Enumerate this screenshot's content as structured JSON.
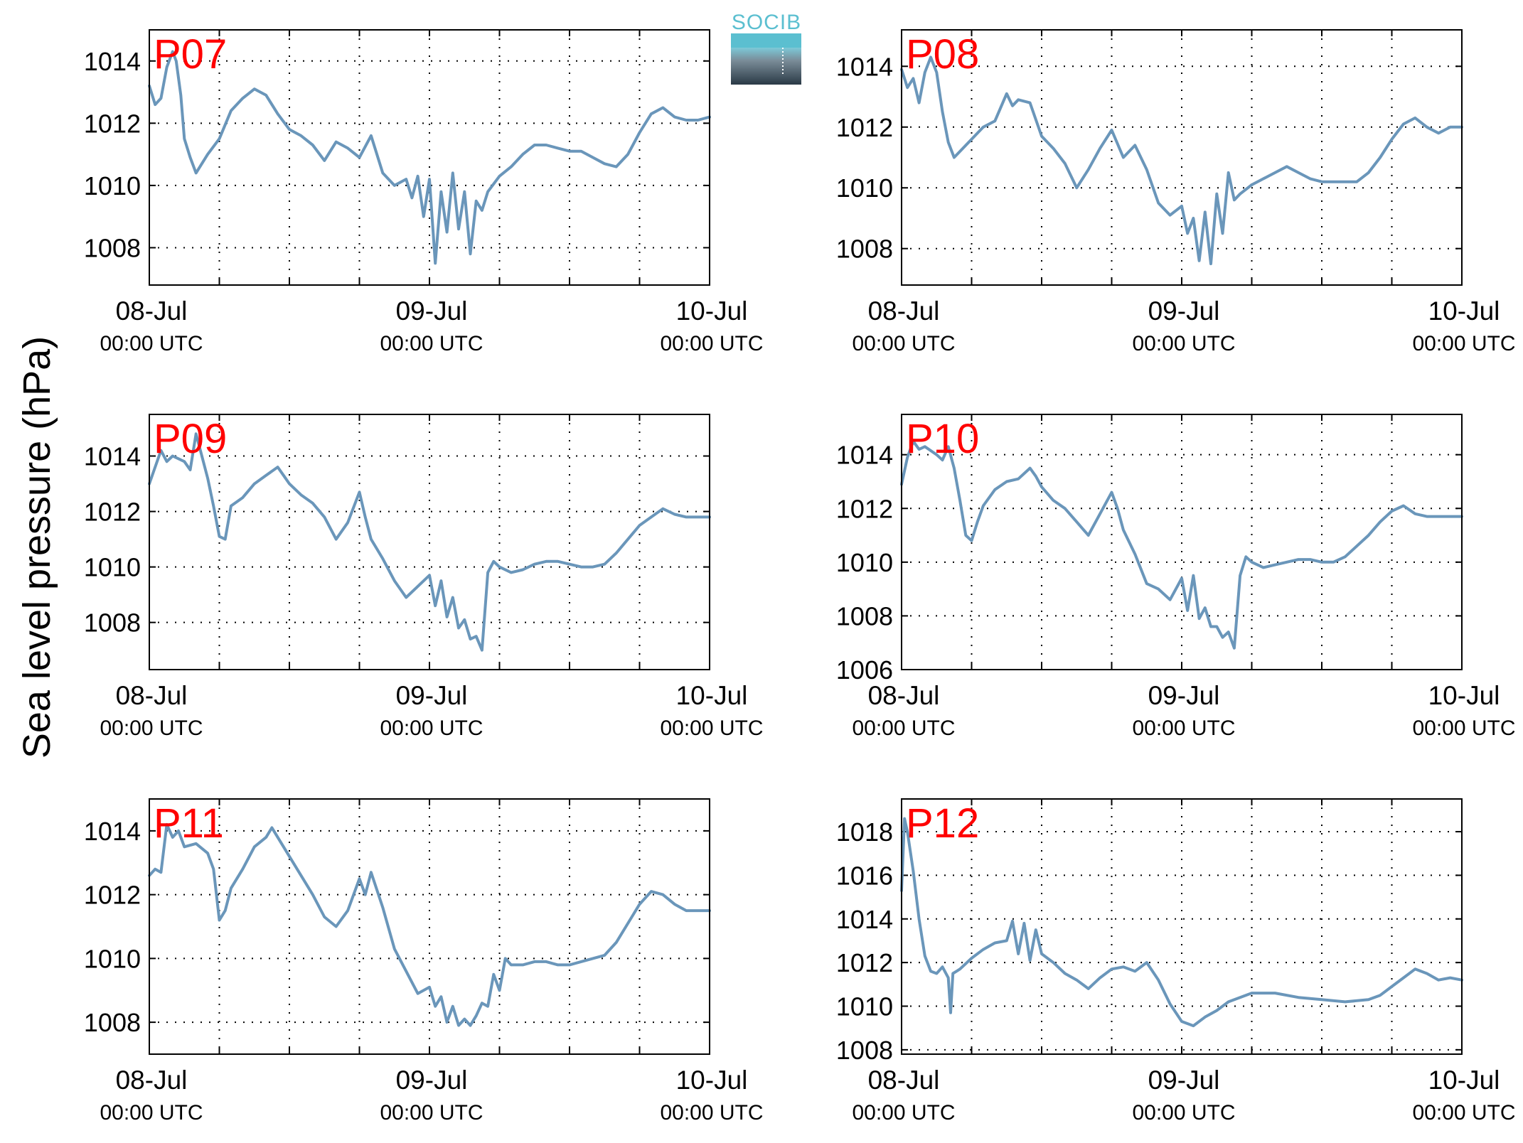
{
  "ylabel": "Sea level pressure (hPa)",
  "logo": {
    "text": "SOCIB",
    "text_color": "#5bbfd0"
  },
  "colors": {
    "series": "#6a96ba",
    "panel_label": "#ff0000",
    "axes": "#000000",
    "grid": "#000000"
  },
  "chart_data": [
    {
      "type": "line",
      "title": "P07",
      "x_ticks": [
        {
          "date": "08-Jul",
          "time": "00:00 UTC"
        },
        {
          "date": "09-Jul",
          "time": "00:00 UTC"
        },
        {
          "date": "10-Jul",
          "time": "00:00 UTC"
        }
      ],
      "xlim_hours": [
        0,
        48
      ],
      "grid_x_hours": [
        6,
        12,
        18,
        24,
        30,
        36,
        42
      ],
      "ylim": [
        1006.8,
        1015.0
      ],
      "y_ticks": [
        1008,
        1010,
        1012,
        1014
      ],
      "grid": true,
      "series": [
        {
          "x_hours": [
            0,
            0.5,
            1,
            1.5,
            2,
            2.3,
            2.7,
            3,
            3.5,
            4,
            5,
            6,
            7,
            8,
            9,
            10,
            11,
            12,
            13,
            14,
            15,
            16,
            17,
            18,
            19,
            20,
            21,
            22,
            22.5,
            23,
            23.5,
            24,
            24.5,
            25,
            25.5,
            26,
            26.5,
            27,
            27.5,
            28,
            28.5,
            29,
            30,
            31,
            32,
            33,
            34,
            35,
            36,
            37,
            38,
            39,
            40,
            41,
            42,
            43,
            44,
            45,
            46,
            47,
            48
          ],
          "y": [
            1013.2,
            1012.6,
            1012.8,
            1013.8,
            1014.3,
            1014.0,
            1012.9,
            1011.5,
            1010.9,
            1010.4,
            1011.0,
            1011.5,
            1012.4,
            1012.8,
            1013.1,
            1012.9,
            1012.3,
            1011.8,
            1011.6,
            1011.3,
            1010.8,
            1011.4,
            1011.2,
            1010.9,
            1011.6,
            1010.4,
            1010.0,
            1010.2,
            1009.6,
            1010.3,
            1009.0,
            1010.2,
            1007.5,
            1009.8,
            1008.5,
            1010.4,
            1008.6,
            1009.8,
            1007.8,
            1009.5,
            1009.2,
            1009.8,
            1010.3,
            1010.6,
            1011.0,
            1011.3,
            1011.3,
            1011.2,
            1011.1,
            1011.1,
            1010.9,
            1010.7,
            1010.6,
            1011.0,
            1011.7,
            1012.3,
            1012.5,
            1012.2,
            1012.1,
            1012.1,
            1012.2
          ]
        }
      ]
    },
    {
      "type": "line",
      "title": "P08",
      "x_ticks": [
        {
          "date": "08-Jul",
          "time": "00:00 UTC"
        },
        {
          "date": "09-Jul",
          "time": "00:00 UTC"
        },
        {
          "date": "10-Jul",
          "time": "00:00 UTC"
        }
      ],
      "xlim_hours": [
        0,
        48
      ],
      "grid_x_hours": [
        6,
        12,
        18,
        24,
        30,
        36,
        42
      ],
      "ylim": [
        1006.8,
        1015.2
      ],
      "y_ticks": [
        1008,
        1010,
        1012,
        1014
      ],
      "grid": true,
      "series": [
        {
          "x_hours": [
            0,
            0.5,
            1,
            1.5,
            2,
            2.5,
            3,
            3.5,
            4,
            4.5,
            5,
            6,
            7,
            8,
            9,
            9.5,
            10,
            11,
            12,
            13,
            14,
            15,
            16,
            17,
            18,
            19,
            20,
            21,
            22,
            23,
            24,
            24.5,
            25,
            25.5,
            26,
            26.5,
            27,
            27.5,
            28,
            28.5,
            29,
            30,
            31,
            32,
            33,
            34,
            35,
            36,
            37,
            38,
            39,
            40,
            41,
            42,
            43,
            44,
            45,
            46,
            47,
            48
          ],
          "y": [
            1013.9,
            1013.3,
            1013.6,
            1012.8,
            1013.8,
            1014.3,
            1013.8,
            1012.5,
            1011.5,
            1011.0,
            1011.2,
            1011.6,
            1012.0,
            1012.2,
            1013.1,
            1012.7,
            1012.9,
            1012.8,
            1011.7,
            1011.3,
            1010.8,
            1010.0,
            1010.6,
            1011.3,
            1011.9,
            1011.0,
            1011.4,
            1010.6,
            1009.5,
            1009.1,
            1009.4,
            1008.5,
            1009.0,
            1007.6,
            1009.2,
            1007.5,
            1009.8,
            1008.5,
            1010.5,
            1009.6,
            1009.8,
            1010.1,
            1010.3,
            1010.5,
            1010.7,
            1010.5,
            1010.3,
            1010.2,
            1010.2,
            1010.2,
            1010.2,
            1010.5,
            1011.0,
            1011.6,
            1012.1,
            1012.3,
            1012.0,
            1011.8,
            1012.0,
            1012.0
          ]
        }
      ]
    },
    {
      "type": "line",
      "title": "P09",
      "x_ticks": [
        {
          "date": "08-Jul",
          "time": "00:00 UTC"
        },
        {
          "date": "09-Jul",
          "time": "00:00 UTC"
        },
        {
          "date": "10-Jul",
          "time": "00:00 UTC"
        }
      ],
      "xlim_hours": [
        0,
        48
      ],
      "grid_x_hours": [
        6,
        12,
        18,
        24,
        30,
        36,
        42
      ],
      "ylim": [
        1006.3,
        1015.5
      ],
      "y_ticks": [
        1008,
        1010,
        1012,
        1014
      ],
      "grid": true,
      "series": [
        {
          "x_hours": [
            0,
            0.5,
            1,
            1.5,
            2,
            3,
            3.5,
            4,
            4.5,
            5,
            5.5,
            6,
            6.5,
            7,
            8,
            9,
            10,
            11,
            11.5,
            12,
            13,
            14,
            15,
            16,
            17,
            18,
            18.5,
            19,
            20,
            21,
            22,
            23,
            24,
            24.5,
            25,
            25.5,
            26,
            26.5,
            27,
            27.5,
            28,
            28.5,
            29,
            29.5,
            30,
            31,
            32,
            33,
            34,
            35,
            36,
            37,
            38,
            39,
            40,
            41,
            42,
            43,
            44,
            45,
            46,
            47,
            48
          ],
          "y": [
            1013.0,
            1013.6,
            1014.2,
            1013.8,
            1014.0,
            1013.8,
            1013.5,
            1014.8,
            1014.0,
            1013.2,
            1012.2,
            1011.1,
            1011.0,
            1012.2,
            1012.5,
            1013.0,
            1013.3,
            1013.6,
            1013.3,
            1013.0,
            1012.6,
            1012.3,
            1011.8,
            1011.0,
            1011.6,
            1012.7,
            1011.8,
            1011.0,
            1010.3,
            1009.5,
            1008.9,
            1009.3,
            1009.7,
            1008.6,
            1009.5,
            1008.2,
            1008.9,
            1007.8,
            1008.1,
            1007.4,
            1007.5,
            1007.0,
            1009.8,
            1010.2,
            1010.0,
            1009.8,
            1009.9,
            1010.1,
            1010.2,
            1010.2,
            1010.1,
            1010.0,
            1010.0,
            1010.1,
            1010.5,
            1011.0,
            1011.5,
            1011.8,
            1012.1,
            1011.9,
            1011.8,
            1011.8,
            1011.8
          ]
        }
      ]
    },
    {
      "type": "line",
      "title": "P10",
      "x_ticks": [
        {
          "date": "08-Jul",
          "time": "00:00 UTC"
        },
        {
          "date": "09-Jul",
          "time": "00:00 UTC"
        },
        {
          "date": "10-Jul",
          "time": "00:00 UTC"
        }
      ],
      "xlim_hours": [
        0,
        48
      ],
      "grid_x_hours": [
        6,
        12,
        18,
        24,
        30,
        36,
        42
      ],
      "ylim": [
        1006.0,
        1015.5
      ],
      "y_ticks": [
        1006,
        1008,
        1010,
        1012,
        1014
      ],
      "grid": true,
      "series": [
        {
          "x_hours": [
            0,
            0.5,
            1,
            1.5,
            2,
            3,
            3.5,
            4,
            4.5,
            5,
            5.5,
            6,
            6.5,
            7,
            8,
            9,
            10,
            11,
            11.5,
            12,
            13,
            14,
            15,
            16,
            17,
            18,
            18.5,
            19,
            20,
            21,
            22,
            23,
            24,
            24.5,
            25,
            25.5,
            26,
            26.5,
            27,
            27.5,
            28,
            28.5,
            29,
            29.5,
            30,
            31,
            32,
            33,
            34,
            35,
            36,
            37,
            38,
            39,
            40,
            41,
            42,
            43,
            44,
            45,
            46,
            47,
            48
          ],
          "y": [
            1012.9,
            1013.9,
            1014.5,
            1014.2,
            1014.3,
            1014.0,
            1013.8,
            1014.3,
            1013.5,
            1012.3,
            1011.0,
            1010.8,
            1011.5,
            1012.1,
            1012.7,
            1013.0,
            1013.1,
            1013.5,
            1013.2,
            1012.8,
            1012.3,
            1012.0,
            1011.5,
            1011.0,
            1011.8,
            1012.6,
            1012.0,
            1011.2,
            1010.3,
            1009.2,
            1009.0,
            1008.6,
            1009.4,
            1008.2,
            1009.5,
            1007.9,
            1008.3,
            1007.6,
            1007.6,
            1007.2,
            1007.4,
            1006.8,
            1009.5,
            1010.2,
            1010.0,
            1009.8,
            1009.9,
            1010.0,
            1010.1,
            1010.1,
            1010.0,
            1010.0,
            1010.2,
            1010.6,
            1011.0,
            1011.5,
            1011.9,
            1012.1,
            1011.8,
            1011.7,
            1011.7,
            1011.7,
            1011.7
          ]
        }
      ]
    },
    {
      "type": "line",
      "title": "P11",
      "x_ticks": [
        {
          "date": "08-Jul",
          "time": "00:00 UTC"
        },
        {
          "date": "09-Jul",
          "time": "00:00 UTC"
        },
        {
          "date": "10-Jul",
          "time": "00:00 UTC"
        }
      ],
      "xlim_hours": [
        0,
        48
      ],
      "grid_x_hours": [
        6,
        12,
        18,
        24,
        30,
        36,
        42
      ],
      "ylim": [
        1007.0,
        1015.0
      ],
      "y_ticks": [
        1008,
        1010,
        1012,
        1014
      ],
      "grid": true,
      "series": [
        {
          "x_hours": [
            0,
            0.5,
            1,
            1.5,
            2,
            2.5,
            3,
            4,
            5,
            5.5,
            6,
            6.5,
            7,
            8,
            9,
            10,
            10.5,
            11,
            12,
            13,
            14,
            15,
            16,
            17,
            18,
            18.5,
            19,
            20,
            21,
            22,
            23,
            24,
            24.5,
            25,
            25.5,
            26,
            26.5,
            27,
            27.5,
            28,
            28.5,
            29,
            29.5,
            30,
            30.5,
            31,
            32,
            33,
            34,
            35,
            36,
            37,
            38,
            39,
            40,
            41,
            42,
            43,
            44,
            45,
            46,
            47,
            48
          ],
          "y": [
            1012.6,
            1012.8,
            1012.7,
            1014.2,
            1013.8,
            1014.0,
            1013.5,
            1013.6,
            1013.3,
            1012.8,
            1011.2,
            1011.5,
            1012.2,
            1012.8,
            1013.5,
            1013.8,
            1014.1,
            1013.8,
            1013.2,
            1012.6,
            1012.0,
            1011.3,
            1011.0,
            1011.5,
            1012.5,
            1012.0,
            1012.7,
            1011.6,
            1010.3,
            1009.6,
            1008.9,
            1009.1,
            1008.5,
            1008.8,
            1008.0,
            1008.5,
            1007.9,
            1008.1,
            1007.9,
            1008.2,
            1008.6,
            1008.5,
            1009.5,
            1009.0,
            1010.0,
            1009.8,
            1009.8,
            1009.9,
            1009.9,
            1009.8,
            1009.8,
            1009.9,
            1010.0,
            1010.1,
            1010.5,
            1011.1,
            1011.7,
            1012.1,
            1012.0,
            1011.7,
            1011.5,
            1011.5,
            1011.5
          ]
        }
      ]
    },
    {
      "type": "line",
      "title": "P12",
      "x_ticks": [
        {
          "date": "08-Jul",
          "time": "00:00 UTC"
        },
        {
          "date": "09-Jul",
          "time": "00:00 UTC"
        },
        {
          "date": "10-Jul",
          "time": "00:00 UTC"
        }
      ],
      "xlim_hours": [
        0,
        48
      ],
      "grid_x_hours": [
        6,
        12,
        18,
        24,
        30,
        36,
        42
      ],
      "ylim": [
        1007.8,
        1019.5
      ],
      "y_ticks": [
        1008,
        1010,
        1012,
        1014,
        1016,
        1018
      ],
      "grid": true,
      "series": [
        {
          "x_hours": [
            0,
            0.25,
            0.5,
            1,
            1.5,
            2,
            2.5,
            3,
            3.5,
            4,
            4.2,
            4.4,
            4.7,
            5,
            6,
            7,
            8,
            9,
            9.5,
            10,
            10.5,
            11,
            11.5,
            12,
            12.5,
            13,
            14,
            15,
            16,
            17,
            18,
            19,
            20,
            21,
            22,
            23,
            24,
            25,
            26,
            27,
            28,
            30,
            32,
            34,
            36,
            38,
            40,
            41,
            42,
            43,
            44,
            45,
            46,
            47,
            48
          ],
          "y": [
            1015.3,
            1018.6,
            1018.0,
            1016.2,
            1014.0,
            1012.3,
            1011.6,
            1011.5,
            1011.8,
            1011.3,
            1009.7,
            1011.5,
            1011.6,
            1011.7,
            1012.2,
            1012.6,
            1012.9,
            1013.0,
            1013.9,
            1012.4,
            1013.8,
            1012.1,
            1013.5,
            1012.4,
            1012.2,
            1012.0,
            1011.5,
            1011.2,
            1010.8,
            1011.3,
            1011.7,
            1011.8,
            1011.6,
            1012.0,
            1011.2,
            1010.1,
            1009.3,
            1009.1,
            1009.5,
            1009.8,
            1010.2,
            1010.6,
            1010.6,
            1010.4,
            1010.3,
            1010.2,
            1010.3,
            1010.5,
            1010.9,
            1011.3,
            1011.7,
            1011.5,
            1011.2,
            1011.3,
            1011.2
          ]
        }
      ]
    }
  ]
}
